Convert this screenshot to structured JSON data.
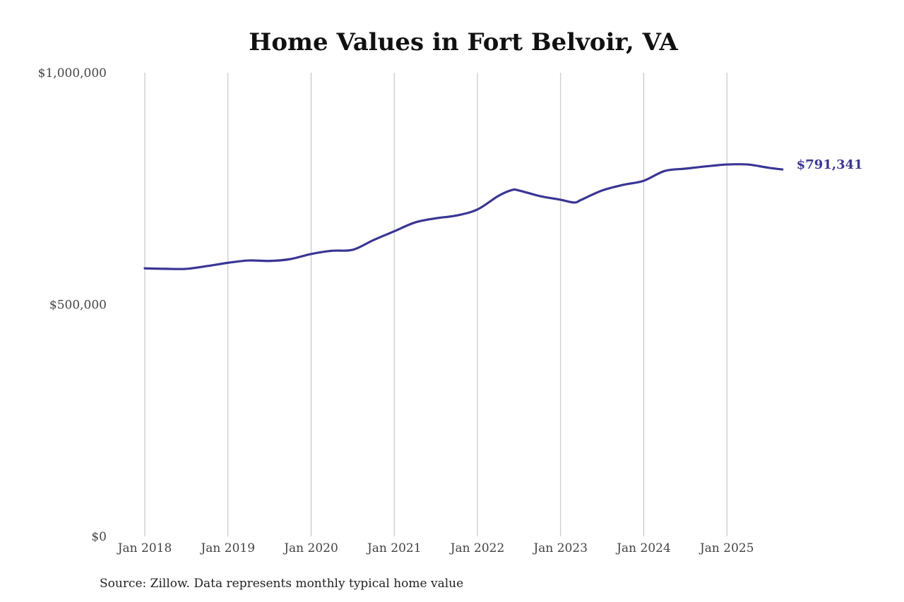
{
  "chart_data": {
    "type": "line",
    "title": "Home Values in Fort Belvoir, VA",
    "xlabel": "",
    "ylabel": "",
    "ylim": [
      0,
      1000000
    ],
    "y_ticks": [
      "$0",
      "$500,000",
      "$1,000,000"
    ],
    "y_tick_values": [
      0,
      500000,
      1000000
    ],
    "x_ticks": [
      "Jan 2018",
      "Jan 2019",
      "Jan 2020",
      "Jan 2021",
      "Jan 2022",
      "Jan 2023",
      "Jan 2024",
      "Jan 2025"
    ],
    "x_tick_values": [
      "2018-01",
      "2019-01",
      "2020-01",
      "2021-01",
      "2022-01",
      "2023-01",
      "2024-01",
      "2025-01"
    ],
    "grid": "vertical",
    "line_color": "#3a3594",
    "end_label": "$791,341",
    "x": [
      "2018-01",
      "2018-04",
      "2018-07",
      "2018-10",
      "2019-01",
      "2019-04",
      "2019-07",
      "2019-10",
      "2020-01",
      "2020-04",
      "2020-07",
      "2020-10",
      "2021-01",
      "2021-04",
      "2021-07",
      "2021-10",
      "2022-01",
      "2022-04",
      "2022-06",
      "2022-07",
      "2022-10",
      "2023-01",
      "2023-03",
      "2023-04",
      "2023-07",
      "2023-10",
      "2024-01",
      "2024-04",
      "2024-07",
      "2024-10",
      "2025-01",
      "2025-04",
      "2025-07",
      "2025-09"
    ],
    "values": [
      578000,
      577000,
      577000,
      583000,
      590000,
      595000,
      594000,
      598000,
      609000,
      616000,
      618000,
      639000,
      658000,
      677000,
      686000,
      692000,
      705000,
      734000,
      747000,
      746000,
      734000,
      726000,
      720000,
      726000,
      746000,
      758000,
      767000,
      788000,
      793000,
      798000,
      802000,
      802000,
      795000,
      791341
    ]
  },
  "source": "Source: Zillow. Data represents monthly typical home value"
}
